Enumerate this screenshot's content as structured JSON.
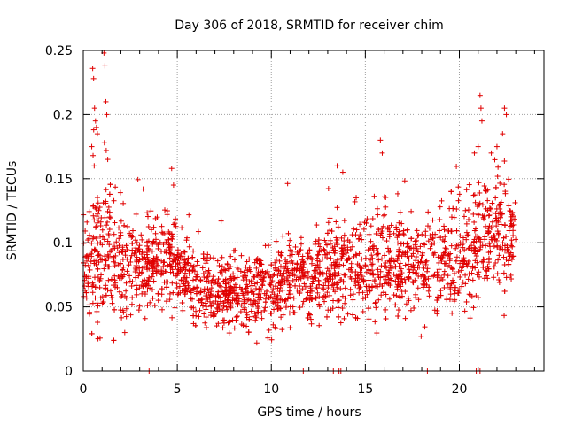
{
  "chart_data": {
    "type": "scatter",
    "title": "Day 306 of 2018, SRMTID for receiver chim",
    "xlabel": "GPS time / hours",
    "ylabel": "SRMTID / TECUs",
    "xlim": [
      0,
      24.5
    ],
    "ylim": [
      0,
      0.25
    ],
    "xticks": [
      0,
      5,
      10,
      15,
      20
    ],
    "xtick_labels": [
      "0",
      "5",
      "10",
      "15",
      "20"
    ],
    "yticks": [
      0,
      0.05,
      0.1,
      0.15,
      0.2,
      0.25
    ],
    "ytick_labels": [
      "0",
      "0.05",
      "0.1",
      "0.15",
      "0.2",
      "0.25"
    ],
    "grid": true,
    "marker": "plus",
    "series_color": "#e00000",
    "trend_knots": [
      [
        0,
        0.085
      ],
      [
        1,
        0.09
      ],
      [
        2,
        0.085
      ],
      [
        3,
        0.08
      ],
      [
        4,
        0.085
      ],
      [
        5,
        0.08
      ],
      [
        6,
        0.07
      ],
      [
        7,
        0.06
      ],
      [
        8,
        0.06
      ],
      [
        9,
        0.06
      ],
      [
        10,
        0.065
      ],
      [
        11,
        0.07
      ],
      [
        12,
        0.075
      ],
      [
        13,
        0.08
      ],
      [
        14,
        0.08
      ],
      [
        15,
        0.078
      ],
      [
        16,
        0.085
      ],
      [
        17,
        0.085
      ],
      [
        18,
        0.082
      ],
      [
        19,
        0.085
      ],
      [
        20,
        0.09
      ],
      [
        21,
        0.1
      ],
      [
        22,
        0.11
      ],
      [
        23,
        0.105
      ]
    ],
    "spread_knots": [
      [
        0,
        0.03
      ],
      [
        1,
        0.045
      ],
      [
        2,
        0.028
      ],
      [
        4,
        0.025
      ],
      [
        6,
        0.02
      ],
      [
        8,
        0.018
      ],
      [
        10,
        0.022
      ],
      [
        12,
        0.024
      ],
      [
        14,
        0.026
      ],
      [
        16,
        0.028
      ],
      [
        18,
        0.026
      ],
      [
        20,
        0.03
      ],
      [
        22,
        0.035
      ],
      [
        23,
        0.035
      ]
    ],
    "points_per_hour": 100,
    "x_range": [
      0,
      23
    ],
    "peaks": [
      {
        "x": 0.5,
        "y": 0.236
      },
      {
        "x": 0.55,
        "y": 0.228
      },
      {
        "x": 0.6,
        "y": 0.205
      },
      {
        "x": 0.65,
        "y": 0.195
      },
      {
        "x": 0.7,
        "y": 0.19
      },
      {
        "x": 0.75,
        "y": 0.185
      },
      {
        "x": 0.45,
        "y": 0.175
      },
      {
        "x": 0.52,
        "y": 0.168
      },
      {
        "x": 0.58,
        "y": 0.16
      },
      {
        "x": 1.1,
        "y": 0.248
      },
      {
        "x": 1.15,
        "y": 0.238
      },
      {
        "x": 1.2,
        "y": 0.21
      },
      {
        "x": 1.25,
        "y": 0.2
      },
      {
        "x": 1.12,
        "y": 0.178
      },
      {
        "x": 1.22,
        "y": 0.172
      },
      {
        "x": 1.3,
        "y": 0.165
      },
      {
        "x": 4.7,
        "y": 0.158
      },
      {
        "x": 4.8,
        "y": 0.145
      },
      {
        "x": 13.5,
        "y": 0.16
      },
      {
        "x": 13.8,
        "y": 0.155
      },
      {
        "x": 15.8,
        "y": 0.18
      },
      {
        "x": 15.9,
        "y": 0.17
      },
      {
        "x": 21.1,
        "y": 0.215
      },
      {
        "x": 21.15,
        "y": 0.205
      },
      {
        "x": 21.2,
        "y": 0.195
      },
      {
        "x": 21.0,
        "y": 0.175
      },
      {
        "x": 20.8,
        "y": 0.17
      },
      {
        "x": 22.4,
        "y": 0.205
      },
      {
        "x": 22.5,
        "y": 0.2
      },
      {
        "x": 22.3,
        "y": 0.185
      },
      {
        "x": 22.0,
        "y": 0.175
      },
      {
        "x": 21.7,
        "y": 0.17
      }
    ],
    "zeros": [
      3.5,
      11.7,
      13.3,
      13.6,
      13.7,
      18.3,
      20.9,
      21.1
    ]
  }
}
